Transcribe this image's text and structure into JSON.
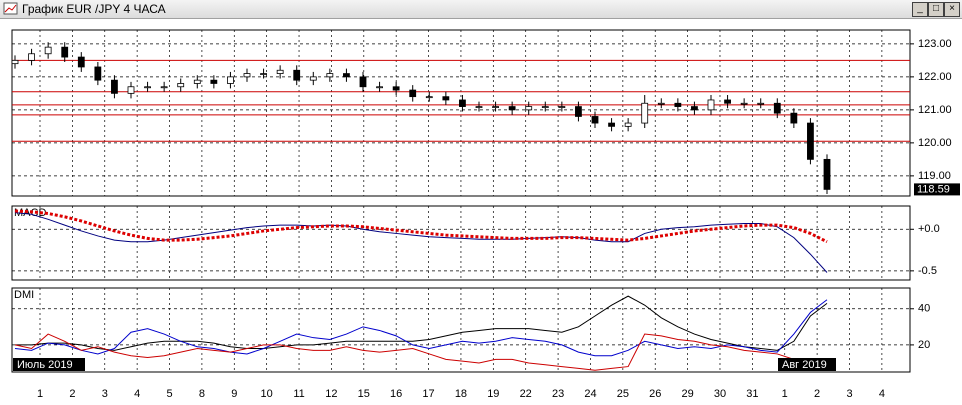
{
  "window": {
    "title": "График EUR /JPY  4 ЧАСА"
  },
  "x_axis": {
    "categories": [
      "1",
      "2",
      "3",
      "4",
      "5",
      "8",
      "9",
      "10",
      "11",
      "12",
      "15",
      "16",
      "17",
      "18",
      "19",
      "22",
      "23",
      "24",
      "25",
      "26",
      "29",
      "30",
      "31",
      "1",
      "2",
      "3",
      "4"
    ],
    "months": [
      "Июль 2019",
      "Авг 2019"
    ]
  },
  "chart_data": [
    {
      "type": "candlestick",
      "up_color": "#ffffff",
      "down_color": "#000000",
      "level_color": "#cc0000",
      "open": [
        122.4,
        122.5,
        122.7,
        122.9,
        122.6,
        122.3,
        121.9,
        121.5,
        121.7,
        121.7,
        121.7,
        121.8,
        121.9,
        121.8,
        122.0,
        122.1,
        122.1,
        122.2,
        121.9,
        122.0,
        122.1,
        122.0,
        121.7,
        121.7,
        121.6,
        121.4,
        121.4,
        121.3,
        121.1,
        121.1,
        121.1,
        121.0,
        121.1,
        121.1,
        121.1,
        120.8,
        120.6,
        120.5,
        120.6,
        121.2,
        121.2,
        121.1,
        121.0,
        121.3,
        121.2,
        121.2,
        121.2,
        120.9,
        120.6,
        119.5
      ],
      "high": [
        122.65,
        122.85,
        123.05,
        123.05,
        122.75,
        122.45,
        122.05,
        121.85,
        121.85,
        121.85,
        121.95,
        122.05,
        122.05,
        122.15,
        122.25,
        122.25,
        122.35,
        122.35,
        122.15,
        122.25,
        122.25,
        122.15,
        121.85,
        121.85,
        121.75,
        121.55,
        121.55,
        121.45,
        121.25,
        121.25,
        121.25,
        121.25,
        121.25,
        121.25,
        121.25,
        120.95,
        120.75,
        120.75,
        121.45,
        121.35,
        121.35,
        121.25,
        121.45,
        121.45,
        121.35,
        121.35,
        121.35,
        121.05,
        120.75,
        119.65
      ],
      "low": [
        122.25,
        122.35,
        122.55,
        122.45,
        122.15,
        121.75,
        121.35,
        121.35,
        121.55,
        121.55,
        121.55,
        121.65,
        121.65,
        121.65,
        121.85,
        121.95,
        121.95,
        121.75,
        121.75,
        121.85,
        121.85,
        121.55,
        121.55,
        121.45,
        121.25,
        121.25,
        121.15,
        120.95,
        120.95,
        120.95,
        120.85,
        120.85,
        120.95,
        120.95,
        120.65,
        120.45,
        120.35,
        120.35,
        120.45,
        121.05,
        120.95,
        120.85,
        120.85,
        121.05,
        121.05,
        121.05,
        120.75,
        120.45,
        119.35,
        118.45
      ],
      "close": [
        122.5,
        122.7,
        122.9,
        122.6,
        122.3,
        121.9,
        121.5,
        121.7,
        121.7,
        121.7,
        121.8,
        121.9,
        121.8,
        122.0,
        122.1,
        122.1,
        122.2,
        121.9,
        122.0,
        122.1,
        122.0,
        121.7,
        121.7,
        121.6,
        121.4,
        121.4,
        121.3,
        121.1,
        121.1,
        121.1,
        121.0,
        121.1,
        121.1,
        121.1,
        120.8,
        120.6,
        120.5,
        120.6,
        121.2,
        121.2,
        121.1,
        121.0,
        121.3,
        121.2,
        121.2,
        121.2,
        120.9,
        120.6,
        119.5,
        118.59
      ],
      "levels": [
        122.5,
        121.55,
        121.15,
        120.85,
        120.05
      ],
      "ylim": [
        118.39,
        123.42
      ],
      "yticks": [
        {
          "value": 119,
          "label": "119.00"
        },
        {
          "value": 120,
          "label": "120.00"
        },
        {
          "value": 121,
          "label": "121.00"
        },
        {
          "value": 122,
          "label": "122.00"
        },
        {
          "value": 123,
          "label": "123.00"
        }
      ],
      "grid": true
    },
    {
      "type": "line",
      "title": "MACD",
      "series": [
        {
          "color": "#000080",
          "width": 1,
          "dash": "none",
          "values": [
            0.2,
            0.18,
            0.12,
            0.05,
            -0.02,
            -0.08,
            -0.13,
            -0.15,
            -0.15,
            -0.13,
            -0.1,
            -0.07,
            -0.04,
            -0.01,
            0.02,
            0.04,
            0.05,
            0.05,
            0.04,
            0.05,
            0.04,
            0.0,
            -0.03,
            -0.05,
            -0.07,
            -0.09,
            -0.1,
            -0.11,
            -0.12,
            -0.12,
            -0.12,
            -0.11,
            -0.1,
            -0.09,
            -0.1,
            -0.13,
            -0.15,
            -0.15,
            -0.05,
            0.0,
            0.02,
            0.03,
            0.05,
            0.06,
            0.07,
            0.07,
            0.03,
            -0.1,
            -0.3,
            -0.52
          ]
        },
        {
          "color": "#dd0000",
          "width": 3,
          "dash": "3 2",
          "values": [
            0.22,
            0.21,
            0.19,
            0.15,
            0.1,
            0.04,
            -0.02,
            -0.07,
            -0.11,
            -0.13,
            -0.13,
            -0.12,
            -0.1,
            -0.08,
            -0.05,
            -0.02,
            0.0,
            0.02,
            0.03,
            0.04,
            0.04,
            0.03,
            0.01,
            -0.01,
            -0.03,
            -0.05,
            -0.07,
            -0.08,
            -0.09,
            -0.1,
            -0.11,
            -0.11,
            -0.11,
            -0.1,
            -0.1,
            -0.11,
            -0.12,
            -0.13,
            -0.11,
            -0.08,
            -0.05,
            -0.02,
            0.0,
            0.02,
            0.04,
            0.05,
            0.05,
            0.02,
            -0.05,
            -0.15
          ]
        }
      ],
      "ylim": [
        -0.61,
        0.28
      ],
      "yticks": [
        {
          "value": -0.5,
          "label": "-0.5"
        },
        {
          "value": 0,
          "label": "+0.0"
        }
      ],
      "grid": true
    },
    {
      "type": "line",
      "title": "DMI",
      "series": [
        {
          "color": "#000000",
          "width": 1,
          "dash": "none",
          "values": [
            20,
            20,
            21,
            21,
            20,
            18,
            17,
            19,
            21,
            22,
            22,
            22,
            21,
            19,
            18,
            18,
            19,
            20,
            20,
            21,
            22,
            22,
            22,
            22,
            22,
            23,
            25,
            27,
            28,
            29,
            29,
            29,
            28,
            27,
            30,
            36,
            42,
            47,
            42,
            35,
            30,
            26,
            23,
            21,
            19,
            18,
            17,
            22,
            36,
            43
          ]
        },
        {
          "color": "#0000cc",
          "width": 1,
          "dash": "none",
          "values": [
            18,
            17,
            21,
            20,
            17,
            15,
            18,
            27,
            29,
            26,
            22,
            19,
            18,
            16,
            15,
            18,
            22,
            26,
            24,
            23,
            26,
            30,
            28,
            25,
            20,
            18,
            20,
            22,
            21,
            22,
            24,
            23,
            22,
            20,
            16,
            14,
            14,
            17,
            22,
            20,
            18,
            19,
            18,
            20,
            19,
            17,
            16,
            26,
            38,
            45
          ]
        },
        {
          "color": "#cc0000",
          "width": 1,
          "dash": "none",
          "values": [
            20,
            18,
            26,
            22,
            17,
            19,
            16,
            14,
            13,
            14,
            16,
            18,
            17,
            16,
            18,
            20,
            20,
            18,
            17,
            17,
            19,
            17,
            16,
            17,
            18,
            15,
            12,
            11,
            10,
            12,
            12,
            10,
            9,
            8,
            7,
            6,
            7,
            8,
            26,
            25,
            23,
            22,
            20,
            19,
            17,
            16,
            15,
            12,
            9,
            6
          ]
        }
      ],
      "ylim": [
        5,
        51.5
      ],
      "yticks": [
        20,
        40
      ],
      "grid": true
    }
  ]
}
